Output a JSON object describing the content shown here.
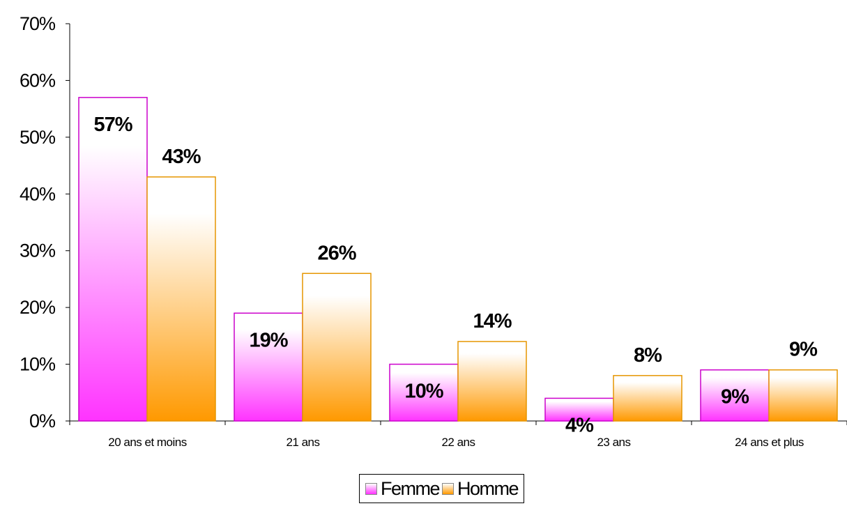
{
  "chart_data": {
    "type": "bar",
    "categories": [
      "20 ans et moins",
      "21 ans",
      "22 ans",
      "23 ans",
      "24 ans et plus"
    ],
    "series": [
      {
        "name": "Femme",
        "values": [
          57,
          19,
          10,
          4,
          9
        ],
        "labels": [
          "57%",
          "19%",
          "10%",
          "4%",
          "9%"
        ],
        "color": "#ff33ff",
        "border": "#cc00cc"
      },
      {
        "name": "Homme",
        "values": [
          43,
          26,
          14,
          8,
          9
        ],
        "labels": [
          "43%",
          "26%",
          "14%",
          "8%",
          "9%"
        ],
        "color": "#ff9900",
        "border": "#e69500"
      }
    ],
    "yticks": [
      "0%",
      "10%",
      "20%",
      "30%",
      "40%",
      "50%",
      "60%",
      "70%"
    ],
    "ylim": [
      0,
      70
    ],
    "xlabel": "",
    "ylabel": "",
    "title": "",
    "grid": false,
    "legend_position": "bottom"
  }
}
